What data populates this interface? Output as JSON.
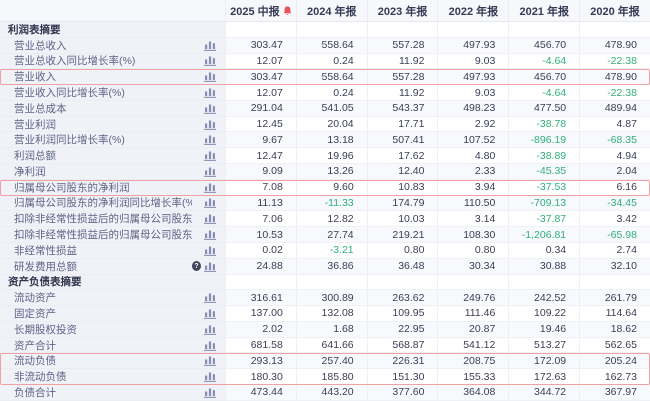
{
  "table": {
    "columns": [
      "2025 中报",
      "2024 年报",
      "2023 年报",
      "2022 年报",
      "2021 年报",
      "2020 年报"
    ],
    "sections": [
      {
        "title": "利润表摘要",
        "rows": [
          {
            "label": "营业总收入",
            "values": [
              "303.47",
              "558.64",
              "557.28",
              "497.93",
              "456.70",
              "478.90"
            ]
          },
          {
            "label": "营业总收入同比增长率(%)",
            "values": [
              "12.07",
              "0.24",
              "11.92",
              "9.03",
              "-4.64",
              "-22.38"
            ]
          },
          {
            "label": "营业收入",
            "highlight": "single",
            "values": [
              "303.47",
              "558.64",
              "557.28",
              "497.93",
              "456.70",
              "478.90"
            ]
          },
          {
            "label": "营业收入同比增长率(%)",
            "values": [
              "12.07",
              "0.24",
              "11.92",
              "9.03",
              "-4.64",
              "-22.38"
            ]
          },
          {
            "label": "营业总成本",
            "values": [
              "291.04",
              "541.05",
              "543.37",
              "498.23",
              "477.50",
              "489.94"
            ]
          },
          {
            "label": "营业利润",
            "values": [
              "12.45",
              "20.04",
              "17.71",
              "2.92",
              "-38.78",
              "4.87"
            ]
          },
          {
            "label": "营业利润同比增长率(%)",
            "values": [
              "9.67",
              "13.18",
              "507.41",
              "107.52",
              "-896.19",
              "-68.35"
            ]
          },
          {
            "label": "利润总额",
            "values": [
              "12.47",
              "19.96",
              "17.62",
              "4.80",
              "-38.89",
              "4.94"
            ]
          },
          {
            "label": "净利润",
            "values": [
              "9.09",
              "13.26",
              "12.40",
              "2.33",
              "-45.35",
              "2.04"
            ]
          },
          {
            "label": "归属母公司股东的净利润",
            "highlight": "single",
            "values": [
              "7.08",
              "9.60",
              "10.83",
              "3.94",
              "-37.53",
              "6.16"
            ]
          },
          {
            "label": "归属母公司股东的净利润同比增长率(%)",
            "values": [
              "11.13",
              "-11.33",
              "174.79",
              "110.50",
              "-709.13",
              "-34.45"
            ]
          },
          {
            "label": "扣除非经常性损益后的归属母公司股东净利润",
            "values": [
              "7.06",
              "12.82",
              "10.03",
              "3.14",
              "-37.87",
              "3.42"
            ]
          },
          {
            "label": "扣除非经常性损益后的归属母公司股东净利润同比增...",
            "values": [
              "10.53",
              "27.74",
              "219.21",
              "108.30",
              "-1,206.81",
              "-65.98"
            ]
          },
          {
            "label": "非经常性损益",
            "values": [
              "0.02",
              "-3.21",
              "0.80",
              "0.80",
              "0.34",
              "2.74"
            ]
          },
          {
            "label": "研发费用总额",
            "info": true,
            "values": [
              "24.88",
              "36.86",
              "36.48",
              "30.34",
              "30.88",
              "32.10"
            ]
          }
        ]
      },
      {
        "title": "资产负债表摘要",
        "rows": [
          {
            "label": "流动资产",
            "values": [
              "316.61",
              "300.89",
              "263.62",
              "249.76",
              "242.52",
              "261.79"
            ]
          },
          {
            "label": "固定资产",
            "values": [
              "137.00",
              "132.08",
              "109.95",
              "111.46",
              "109.22",
              "114.64"
            ]
          },
          {
            "label": "长期股权投资",
            "values": [
              "2.02",
              "1.68",
              "22.95",
              "20.87",
              "19.46",
              "18.62"
            ]
          },
          {
            "label": "资产合计",
            "values": [
              "681.58",
              "641.66",
              "568.87",
              "541.12",
              "513.27",
              "562.65"
            ]
          },
          {
            "label": "流动负债",
            "highlight": "start",
            "values": [
              "293.13",
              "257.40",
              "226.31",
              "208.75",
              "172.09",
              "205.24"
            ]
          },
          {
            "label": "非流动负债",
            "highlight": "end",
            "values": [
              "180.30",
              "185.80",
              "151.30",
              "155.33",
              "172.63",
              "162.73"
            ]
          },
          {
            "label": "负债合计",
            "values": [
              "473.44",
              "443.20",
              "377.60",
              "364.08",
              "344.72",
              "367.97"
            ]
          }
        ]
      }
    ]
  },
  "icons": {
    "alert_bell": "bell-icon",
    "row_chart": "bar-chart-icon",
    "info": "info-icon",
    "info_glyph": "?"
  },
  "colors": {
    "negative_value": "#2fb07c",
    "highlight_border": "#f0a2a2",
    "bell_red": "#e85456",
    "label_column_bg": "#f1f2f8",
    "stripe_bg": "#f8f9fc"
  }
}
